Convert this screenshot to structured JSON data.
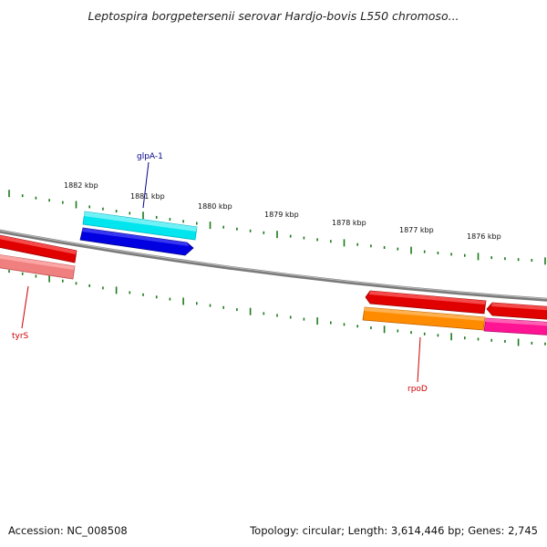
{
  "title": "Leptospira borgpetersenii serovar Hardjo-bovis L550 chromoso...",
  "footer": {
    "accession": "Accession: NC_008508",
    "summary": "Topology: circular; Length: 3,614,446 bp; Genes: 2,745"
  },
  "axis": {
    "tick_labels": [
      "1882 kbp",
      "1881 kbp",
      "1880 kbp",
      "1879 kbp",
      "1878 kbp",
      "1877 kbp",
      "1876 kbp"
    ]
  },
  "genes": {
    "glpA": {
      "label": "glpA-1",
      "color": "#00008b"
    },
    "tyrS": {
      "label": "tyrS",
      "color": "#cc0000"
    },
    "rpoD": {
      "label": "rpoD",
      "color": "#cc0000"
    }
  },
  "colors": {
    "backbone": "#808080",
    "ticks": "#1a7a1a",
    "feature_cyan": "#00e5ee",
    "feature_blue": "#0000e0",
    "feature_red": "#e00000",
    "feature_salmon": "#f08080",
    "feature_orange": "#ff8c00",
    "feature_magenta": "#ff1493"
  }
}
